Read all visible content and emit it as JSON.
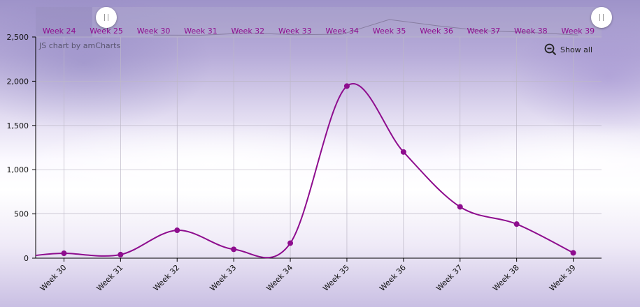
{
  "chart_data": {
    "type": "line",
    "categories": [
      "Week 30",
      "Week 31",
      "Week 32",
      "Week 33",
      "Week 34",
      "Week 35",
      "Week 36",
      "Week 37",
      "Week 38",
      "Week 39"
    ],
    "values": [
      55,
      40,
      315,
      100,
      170,
      1945,
      1200,
      580,
      385,
      60
    ],
    "ylim": [
      0,
      2500
    ],
    "yticks": [
      "0",
      "500",
      "1,000",
      "1,500",
      "2,000",
      "2,500"
    ],
    "ytick_values": [
      0,
      500,
      1000,
      1500,
      2000,
      2500
    ],
    "grid": true,
    "line_color": "#8e0d8e",
    "smoothed": true,
    "scrollbar": {
      "labels": [
        "Week 24",
        "Week 25",
        "Week 30",
        "Week 31",
        "Week 32",
        "Week 33",
        "Week 34",
        "Week 35",
        "Week 36",
        "Week 37",
        "Week 38",
        "Week 39"
      ],
      "label_color": "#8e0d8e",
      "selection_start": 0.1,
      "selection_end": 1.0
    }
  },
  "credit_text": "JS chart by amCharts",
  "zoom": {
    "show_all_label": "Show all"
  },
  "colors": {
    "accent": "#8e0d8e",
    "grid": "#bdb8c7",
    "axis": "#000000"
  }
}
